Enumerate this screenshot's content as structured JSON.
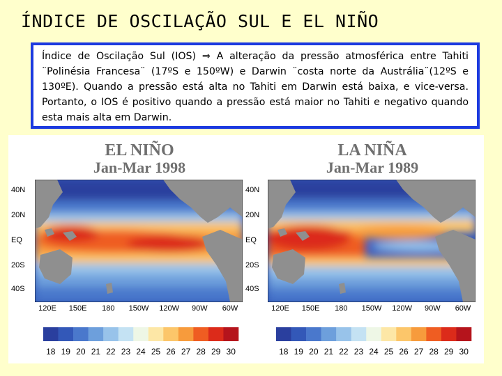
{
  "slide": {
    "title": "ÍNDICE DE OSCILAÇÃO SUL E EL NIÑO",
    "text": "Índice de Oscilação Sul (IOS) ⇒ A alteração da pressão atmosférica entre Tahiti ¨Polinésia Francesa¨ (17ºS e 150ºW) e Darwin ¨costa norte da Austrália¨(12ºS e 130ºE). Quando a pressão está alta no Tahiti em Darwin está baixa, e vice-versa. Portanto, o IOS é positivo quando a pressão está maior no Tahiti e negativo quando esta mais alta em Darwin."
  },
  "figure": {
    "left_panel": {
      "title": "EL NIÑO",
      "subtitle": "Jan-Mar 1998"
    },
    "right_panel": {
      "title": "LA NIÑA",
      "subtitle": "Jan-Mar 1989"
    },
    "lat_labels": [
      "40N",
      "20N",
      "EQ",
      "20S",
      "40S"
    ],
    "lon_labels": [
      "120E",
      "150E",
      "180",
      "150W",
      "120W",
      "90W",
      "60W"
    ],
    "colorbar_labels": [
      "18",
      "19",
      "20",
      "21",
      "22",
      "23",
      "24",
      "25",
      "26",
      "27",
      "28",
      "29",
      "30"
    ],
    "colorbar_colors": [
      "#2a3f9e",
      "#3358b8",
      "#4a78cc",
      "#6d9fdc",
      "#98c3ea",
      "#c4e2f3",
      "#eef7e6",
      "#fde7a6",
      "#fcc66a",
      "#f79b3c",
      "#ef5d22",
      "#dc2b1a",
      "#b5141c"
    ],
    "land_color": "#8f8f8f",
    "background_color": "#ffffff",
    "colors": {
      "frame_border": "#1c3ae0",
      "slide_bg": "#ffffcc"
    }
  }
}
